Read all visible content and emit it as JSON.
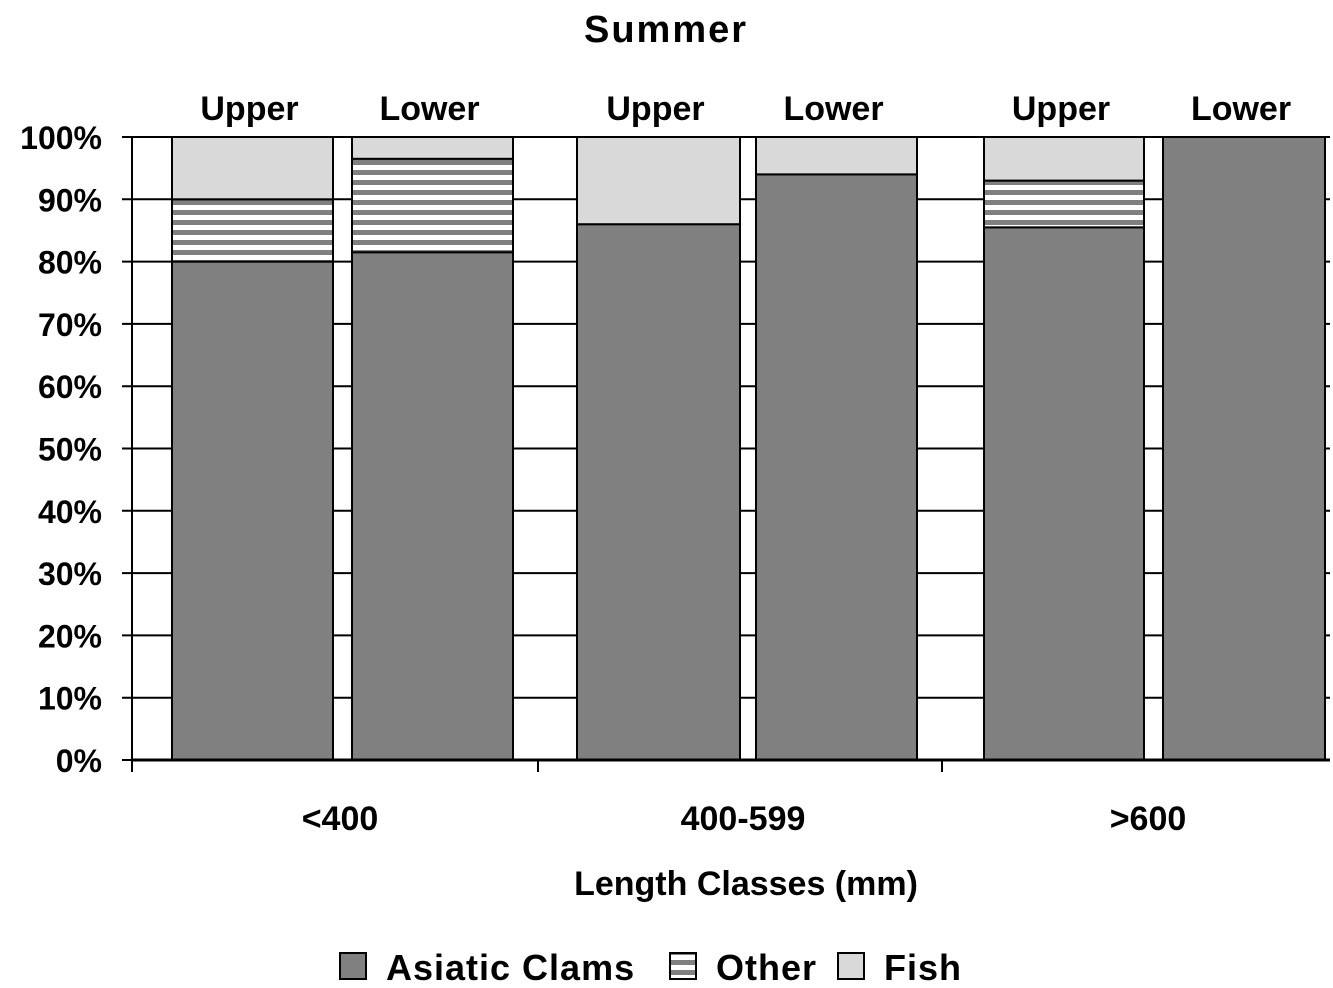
{
  "chart_data": {
    "type": "bar",
    "stacked": "percent",
    "title": "Summer",
    "xlabel": "Length Classes (mm)",
    "ylabel": "",
    "ylim": [
      0,
      100
    ],
    "yticks": [
      "0%",
      "10%",
      "20%",
      "30%",
      "40%",
      "50%",
      "60%",
      "70%",
      "80%",
      "90%",
      "100%"
    ],
    "grid": true,
    "legend_position": "bottom",
    "groups": [
      {
        "category": "<400",
        "bars": [
          {
            "label": "Upper",
            "values": {
              "Asiatic Clams": 80,
              "Other": 10,
              "Fish": 10
            }
          },
          {
            "label": "Lower",
            "values": {
              "Asiatic Clams": 81.5,
              "Other": 15,
              "Fish": 3.5
            }
          }
        ]
      },
      {
        "category": "400-599",
        "bars": [
          {
            "label": "Upper",
            "values": {
              "Asiatic Clams": 86,
              "Other": 0,
              "Fish": 14
            }
          },
          {
            "label": "Lower",
            "values": {
              "Asiatic Clams": 94,
              "Other": 0,
              "Fish": 6
            }
          }
        ]
      },
      {
        "category": ">600",
        "bars": [
          {
            "label": "Upper",
            "values": {
              "Asiatic Clams": 85.5,
              "Other": 7.5,
              "Fish": 7
            }
          },
          {
            "label": "Lower",
            "values": {
              "Asiatic Clams": 100,
              "Other": 0,
              "Fish": 0
            }
          }
        ]
      }
    ],
    "series": [
      {
        "name": "Asiatic Clams",
        "color": "#808080",
        "pattern": "solid"
      },
      {
        "name": "Other",
        "color": "#808080",
        "pattern": "horizontal-stripes"
      },
      {
        "name": "Fish",
        "color": "#d9d9d9",
        "pattern": "solid"
      }
    ]
  }
}
